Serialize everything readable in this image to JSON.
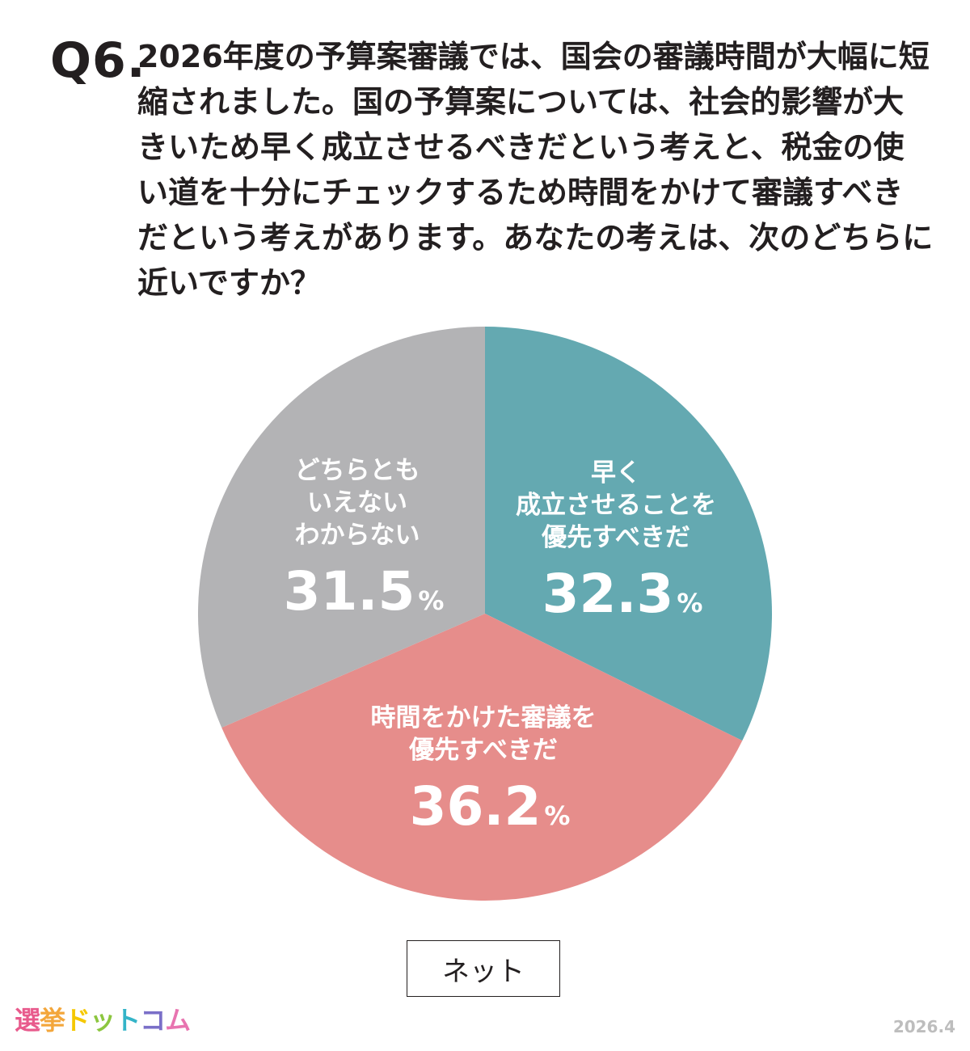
{
  "question": {
    "number": "Q6.",
    "text": "2026年度の予算案審議では、国会の審議時間が大幅に短縮されました。国の予算案については、社会的影響が大きいため早く成立させるべきだという考えと、税金の使い道を十分にチェックするため時間をかけて審議すべきだという考えがあります。あなたの考えは、次のどちらに近いですか？"
  },
  "chart_data": {
    "type": "pie",
    "start_angle_deg": 0,
    "direction": "clockwise",
    "slices": [
      {
        "label_lines": [
          "早く",
          "成立させることを",
          "優先すべきだ"
        ],
        "value": 32.3,
        "value_text": "32.3",
        "unit": "%",
        "color": "#64a9b1"
      },
      {
        "label_lines": [
          "時間をかけた審議を",
          "優先すべきだ"
        ],
        "value": 36.2,
        "value_text": "36.2",
        "unit": "%",
        "color": "#e68d8b"
      },
      {
        "label_lines": [
          "どちらとも",
          "いえない",
          "わからない"
        ],
        "value": 31.5,
        "value_text": "31.5",
        "unit": "%",
        "color": "#b3b3b5"
      }
    ]
  },
  "source": {
    "label": "ネット"
  },
  "logo": {
    "chars": [
      "選",
      "挙",
      "ド",
      "ッ",
      "ト",
      "コ",
      "ム"
    ],
    "colors": [
      "#e85a8c",
      "#f3a63b",
      "#f5c800",
      "#8cc63f",
      "#34b4c8",
      "#7a6fc8",
      "#e874b0"
    ]
  },
  "date": "2026.4"
}
